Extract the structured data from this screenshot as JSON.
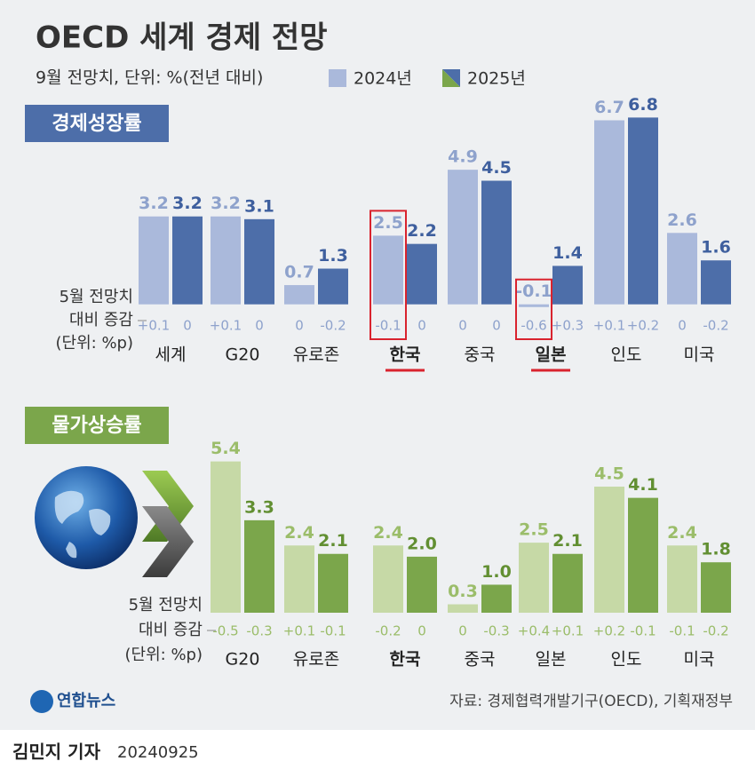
{
  "header": {
    "title": "OECD 세계 경제 전망",
    "subtitle": "9월 전망치, 단위: %(전년 대비)"
  },
  "change_caption": [
    "5월 전망치",
    "대비 증감",
    "(단위: %p)"
  ],
  "footer": {
    "logo": "연합뉴스",
    "source": "자료: 경제협력개발기구(OECD), 기획재정부",
    "byline": "김민지 기자",
    "date": "20240925"
  },
  "chart_data": [
    {
      "type": "bar",
      "title": "경제성장률",
      "categories": [
        "세계",
        "G20",
        "유로존",
        "한국",
        "중국",
        "일본",
        "인도",
        "미국"
      ],
      "ylim": [
        -0.3,
        7.2
      ],
      "highlight": [
        3,
        5
      ],
      "series": [
        {
          "name": "2024년",
          "color": "#aab9db",
          "values": [
            3.2,
            3.2,
            0.7,
            2.5,
            4.9,
            -0.1,
            6.7,
            2.6
          ],
          "change_values": [
            0.1,
            0.1,
            0,
            -0.1,
            0,
            -0.6,
            0.1,
            0
          ],
          "change_labels": [
            "+0.1",
            "+0.1",
            "0",
            "-0.1",
            "0",
            "-0.6",
            "+0.1",
            "0"
          ]
        },
        {
          "name": "2025년",
          "color": "#4d6ea9",
          "values": [
            3.2,
            3.1,
            1.3,
            2.2,
            4.5,
            1.4,
            6.8,
            1.6
          ],
          "change_values": [
            0,
            0,
            -0.2,
            0,
            0,
            0.3,
            0.2,
            -0.2
          ],
          "change_labels": [
            "0",
            "0",
            "-0.2",
            "0",
            "0",
            "+0.3",
            "+0.2",
            "-0.2"
          ]
        }
      ]
    },
    {
      "type": "bar",
      "title": "물가상승률",
      "categories": [
        "G20",
        "유로존",
        "한국",
        "중국",
        "일본",
        "인도",
        "미국"
      ],
      "ylim": [
        0,
        5.8
      ],
      "bold_categories": [
        2
      ],
      "series": [
        {
          "color": "#c6d9a6",
          "values": [
            5.4,
            2.4,
            2.4,
            0.3,
            2.5,
            4.5,
            2.4
          ],
          "value_labels": [
            "5.4",
            "2.4",
            "2.4",
            "0.3",
            "2.5",
            "4.5",
            "2.4"
          ],
          "change_values": [
            -0.5,
            0.1,
            -0.2,
            0,
            0.4,
            0.2,
            -0.1
          ],
          "change_labels": [
            "-0.5",
            "+0.1",
            "-0.2",
            "0",
            "+0.4",
            "+0.2",
            "-0.1"
          ]
        },
        {
          "color": "#7ba64b",
          "values": [
            3.3,
            2.1,
            2.0,
            1.0,
            2.1,
            4.1,
            1.8
          ],
          "value_labels": [
            "3.3",
            "2.1",
            "2.0",
            "1.0",
            "2.1",
            "4.1",
            "1.8"
          ],
          "change_values": [
            -0.3,
            -0.1,
            0,
            -0.3,
            0.1,
            -0.1,
            -0.2
          ],
          "change_labels": [
            "-0.3",
            "-0.1",
            "0",
            "-0.3",
            "+0.1",
            "-0.1",
            "-0.2"
          ]
        }
      ]
    }
  ]
}
